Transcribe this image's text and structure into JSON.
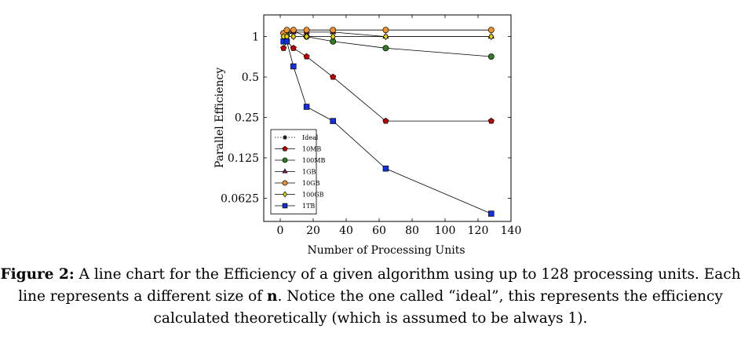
{
  "chart_data": {
    "type": "line",
    "xlabel": "Number of Processing Units",
    "ylabel": "Parallel Efficiency",
    "xlim": [
      -10,
      140
    ],
    "ylim": [
      0.042,
      1.45
    ],
    "y_scale": "log2",
    "x_ticks": [
      0,
      20,
      40,
      60,
      80,
      100,
      120,
      140
    ],
    "y_ticks": [
      {
        "value": 0.0625,
        "label": "0.0625"
      },
      {
        "value": 0.125,
        "label": "0.125"
      },
      {
        "value": 0.25,
        "label": "0.25"
      },
      {
        "value": 0.5,
        "label": "0.5"
      },
      {
        "value": 1,
        "label": "1"
      }
    ],
    "legend_position": "bottom-left",
    "grid": false,
    "series": [
      {
        "name": "Ideal",
        "marker": "star",
        "line": "dotted",
        "color": "#000000",
        "x": [
          2,
          4,
          8,
          16,
          32,
          64,
          128
        ],
        "y": [
          1,
          1,
          1,
          1,
          1,
          1,
          1
        ]
      },
      {
        "name": "10MB",
        "marker": "pentagon",
        "line": "solid",
        "color": "#c00000",
        "x": [
          2,
          4,
          8,
          16,
          32,
          64,
          128
        ],
        "y": [
          0.82,
          0.92,
          0.82,
          0.71,
          0.5,
          0.235,
          0.235
        ]
      },
      {
        "name": "100MB",
        "marker": "circle",
        "line": "solid",
        "color": "#2e7d1e",
        "x": [
          2,
          4,
          8,
          16,
          32,
          64,
          128
        ],
        "y": [
          1.06,
          1.02,
          1.1,
          1.0,
          0.92,
          0.82,
          0.71
        ]
      },
      {
        "name": "1GB",
        "marker": "triangle",
        "line": "solid",
        "color": "#8b1a5a",
        "x": [
          2,
          4,
          8,
          16,
          32,
          64,
          128
        ],
        "y": [
          0.92,
          1.1,
          1.08,
          1.08,
          1.08,
          1.0,
          1.0
        ]
      },
      {
        "name": "10GB",
        "marker": "circle",
        "line": "solid",
        "color": "#f0922a",
        "x": [
          2,
          4,
          8,
          16,
          32,
          64,
          128
        ],
        "y": [
          1.06,
          1.12,
          1.12,
          1.12,
          1.12,
          1.12,
          1.12
        ]
      },
      {
        "name": "100GB",
        "marker": "diamond",
        "line": "solid",
        "color": "#e6d200",
        "x": [
          2,
          4,
          8,
          16,
          32,
          64,
          128
        ],
        "y": [
          1.0,
          1.0,
          1.0,
          1.0,
          1.0,
          1.0,
          1.0
        ]
      },
      {
        "name": "1TB",
        "marker": "square",
        "line": "solid",
        "color": "#1030e0",
        "x": [
          2,
          4,
          8,
          16,
          32,
          64,
          128
        ],
        "y": [
          0.92,
          0.92,
          0.6,
          0.3,
          0.235,
          0.104,
          0.048
        ]
      }
    ]
  },
  "caption": {
    "label": "Figure 2:",
    "text": " A line chart for the Efficiency of a given algorithm using up to 128 processing units. Each line represents a different size of ",
    "bold_var": "n",
    "text2": ". Notice the one called “ideal”, this represents the efficiency calculated theoretically (which is assumed to be always 1)."
  }
}
